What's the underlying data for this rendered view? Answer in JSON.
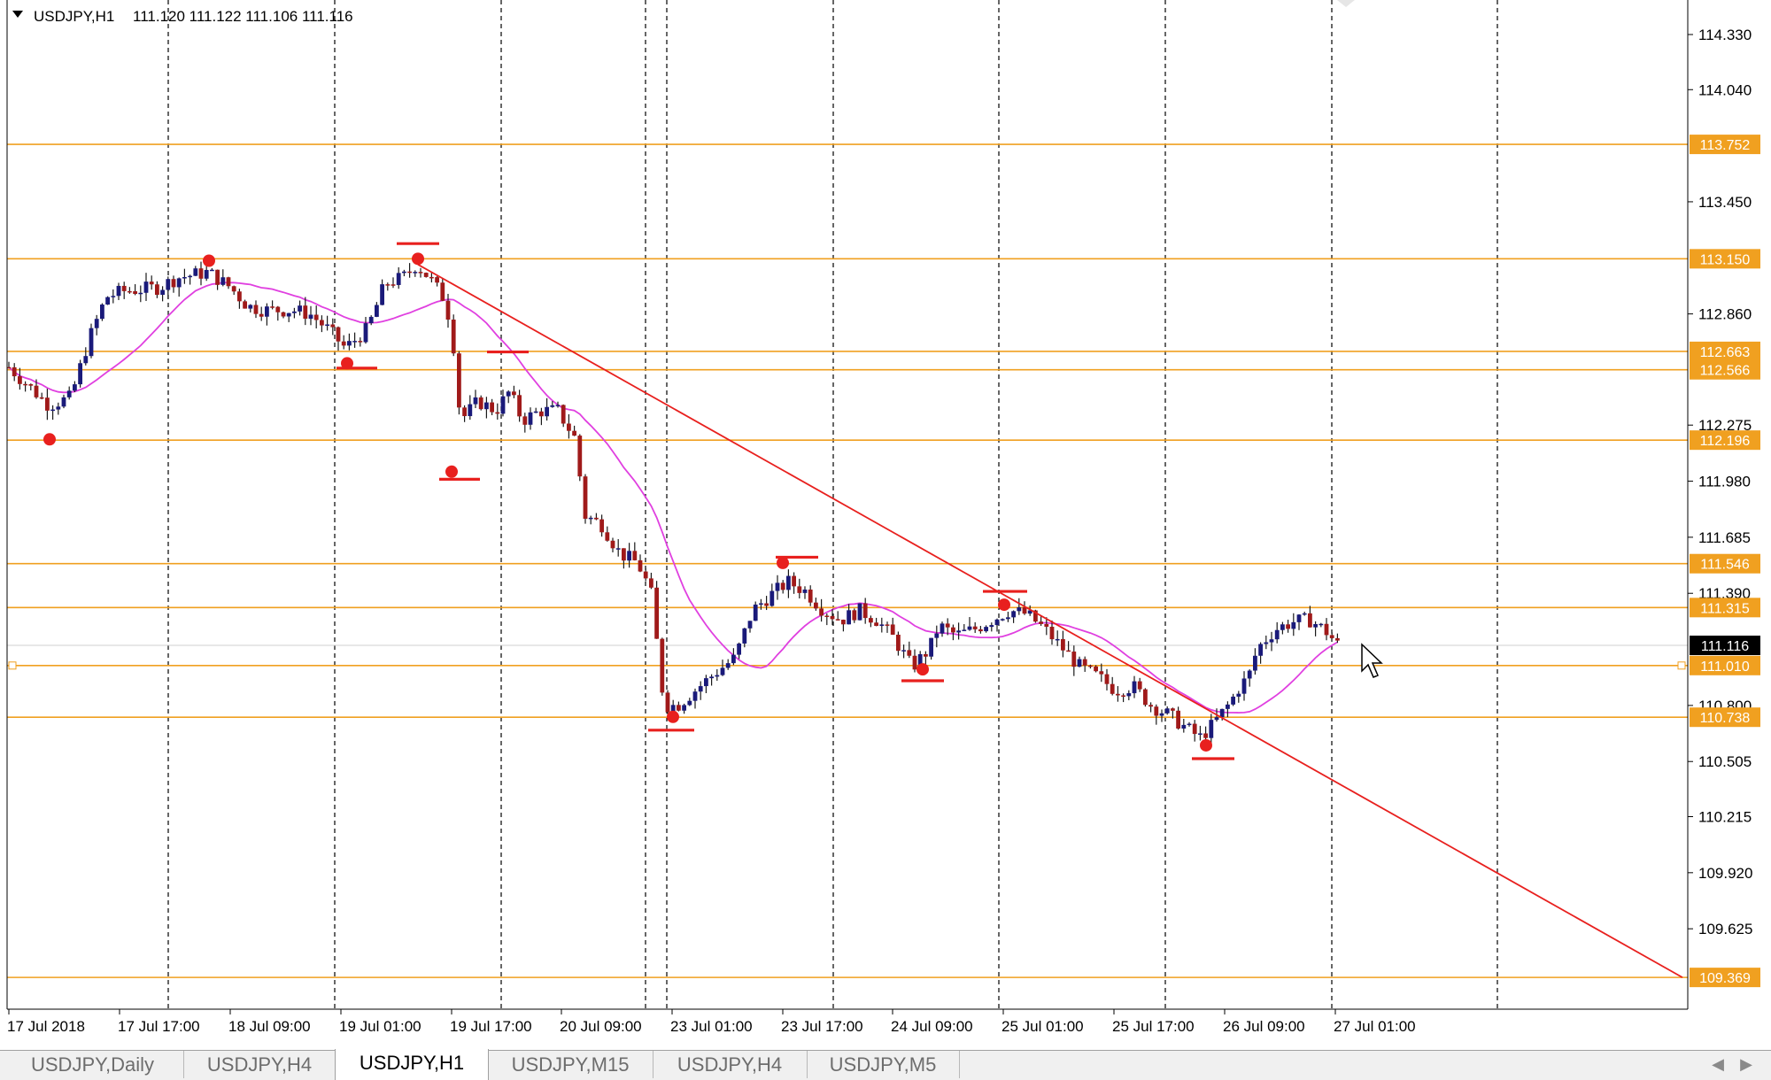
{
  "header": {
    "symbol": "USDJPY,H1",
    "ohlc": "111.120 111.122 111.106 111.116"
  },
  "price_axis": {
    "labels": [
      "114.330",
      "114.040",
      "113.450",
      "112.860",
      "112.275",
      "111.980",
      "111.685",
      "111.390",
      "110.800",
      "110.505",
      "110.215",
      "109.920",
      "109.625"
    ]
  },
  "time_axis": {
    "labels": [
      "17 Jul 2018",
      "17 Jul 17:00",
      "18 Jul 09:00",
      "19 Jul 01:00",
      "19 Jul 17:00",
      "20 Jul 09:00",
      "23 Jul 01:00",
      "23 Jul 17:00",
      "24 Jul 09:00",
      "25 Jul 01:00",
      "25 Jul 17:00",
      "26 Jul 09:00",
      "27 Jul 01:00"
    ]
  },
  "horizontal_lines": [
    "113.752",
    "113.150",
    "112.663",
    "112.566",
    "112.196",
    "111.546",
    "111.315",
    "111.010",
    "110.738",
    "109.369"
  ],
  "current_price": "111.116",
  "colors": {
    "level_line": "#f0a020",
    "trendline": "#e8201e",
    "moving_average": "#e040e0",
    "bull_candle": "#1a1a7a",
    "bear_candle": "#a01a1a",
    "current_price_bg": "#000000"
  },
  "tabs": [
    {
      "label": "USDJPY,Daily",
      "active": false
    },
    {
      "label": "USDJPY,H4",
      "active": false
    },
    {
      "label": "USDJPY,H1",
      "active": true
    },
    {
      "label": "USDJPY,M15",
      "active": false
    },
    {
      "label": "USDJPY,H4",
      "active": false
    },
    {
      "label": "USDJPY,M5",
      "active": false
    }
  ],
  "icons": {
    "dropdown": "triangle-down-icon",
    "cursor": "mouse-pointer-icon",
    "tab_prev": "chevron-left-icon",
    "tab_next": "chevron-right-icon"
  }
}
